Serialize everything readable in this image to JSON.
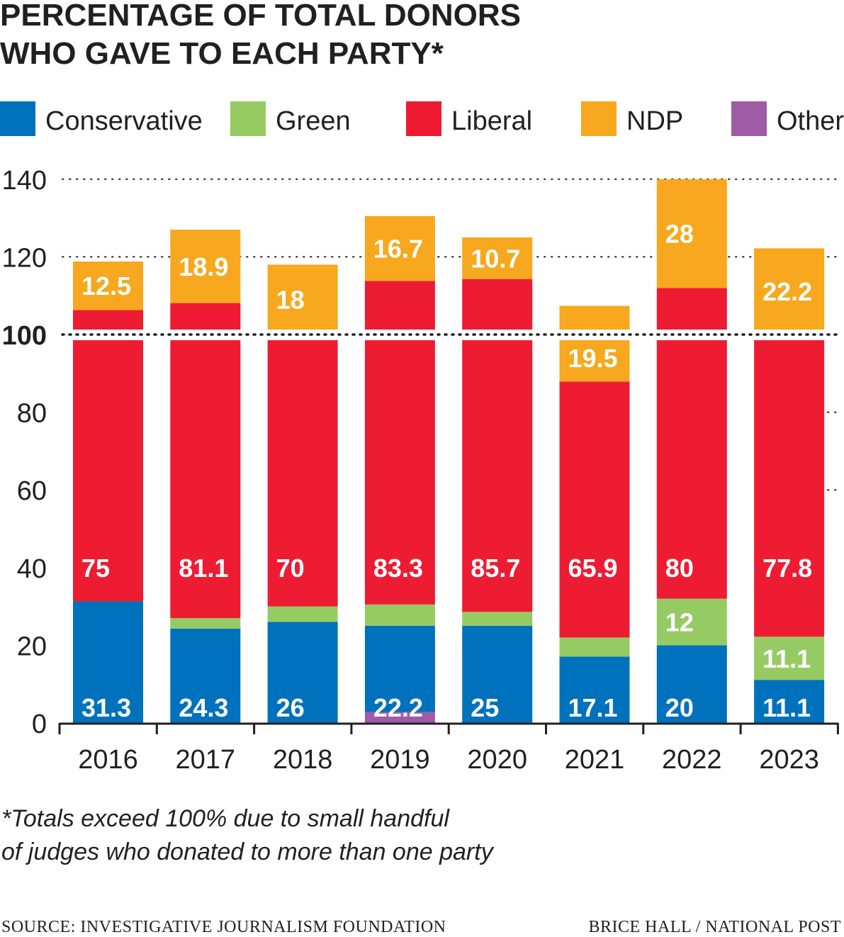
{
  "chart_data": {
    "type": "bar",
    "stacked": true,
    "title_lines": [
      "PERCENTAGE OF TOTAL DONORS",
      "WHO GAVE TO EACH PARTY*"
    ],
    "xlabel": "",
    "ylabel": "",
    "ylim": [
      0,
      140
    ],
    "yticks": [
      "0",
      "20",
      "40",
      "60",
      "80",
      "100",
      "120",
      "140"
    ],
    "grid": "dotted horizontal at 100, 120, 140",
    "legend_position": "top",
    "categories": [
      "2016",
      "2017",
      "2018",
      "2019",
      "2020",
      "2021",
      "2022",
      "2023"
    ],
    "series": [
      {
        "name": "Other",
        "color": "#a05ba6",
        "values": [
          0,
          0,
          0,
          2.8,
          0,
          0,
          0,
          0
        ],
        "labels": [
          "",
          "",
          "",
          "",
          "",
          "",
          "",
          ""
        ]
      },
      {
        "name": "Conservative",
        "color": "#0071bc",
        "values": [
          31.3,
          24.3,
          26,
          22.2,
          25,
          17.1,
          20,
          11.1
        ],
        "labels": [
          "31.3",
          "24.3",
          "26",
          "22.2",
          "25",
          "17.1",
          "20",
          "11.1"
        ]
      },
      {
        "name": "Green",
        "color": "#96cb63",
        "values": [
          0,
          2.7,
          4,
          5.5,
          3.6,
          4.9,
          12,
          11.1
        ],
        "labels": [
          "",
          "",
          "",
          "",
          "",
          "",
          "12",
          "11.1"
        ]
      },
      {
        "name": "Liberal",
        "color": "#ed1c33",
        "values": [
          75,
          81.1,
          70,
          83.3,
          85.7,
          65.9,
          80,
          77.8
        ],
        "labels": [
          "75",
          "81.1",
          "70",
          "83.3",
          "85.7",
          "65.9",
          "80",
          "77.8"
        ]
      },
      {
        "name": "NDP",
        "color": "#f7a81e",
        "values": [
          12.5,
          18.9,
          18,
          16.7,
          10.7,
          19.5,
          28,
          22.2
        ],
        "labels": [
          "12.5",
          "18.9",
          "18",
          "16.7",
          "10.7",
          "19.5",
          "28",
          "22.2"
        ]
      }
    ],
    "legend": [
      "Conservative",
      "Green",
      "Liberal",
      "NDP",
      "Other"
    ],
    "footnote_lines": [
      "*Totals exceed 100% due to small handful",
      "of judges who donated to more than one party"
    ],
    "source": "SOURCE: INVESTIGATIVE JOURNALISM FOUNDATION",
    "credit": "BRICE HALL / NATIONAL POST"
  }
}
